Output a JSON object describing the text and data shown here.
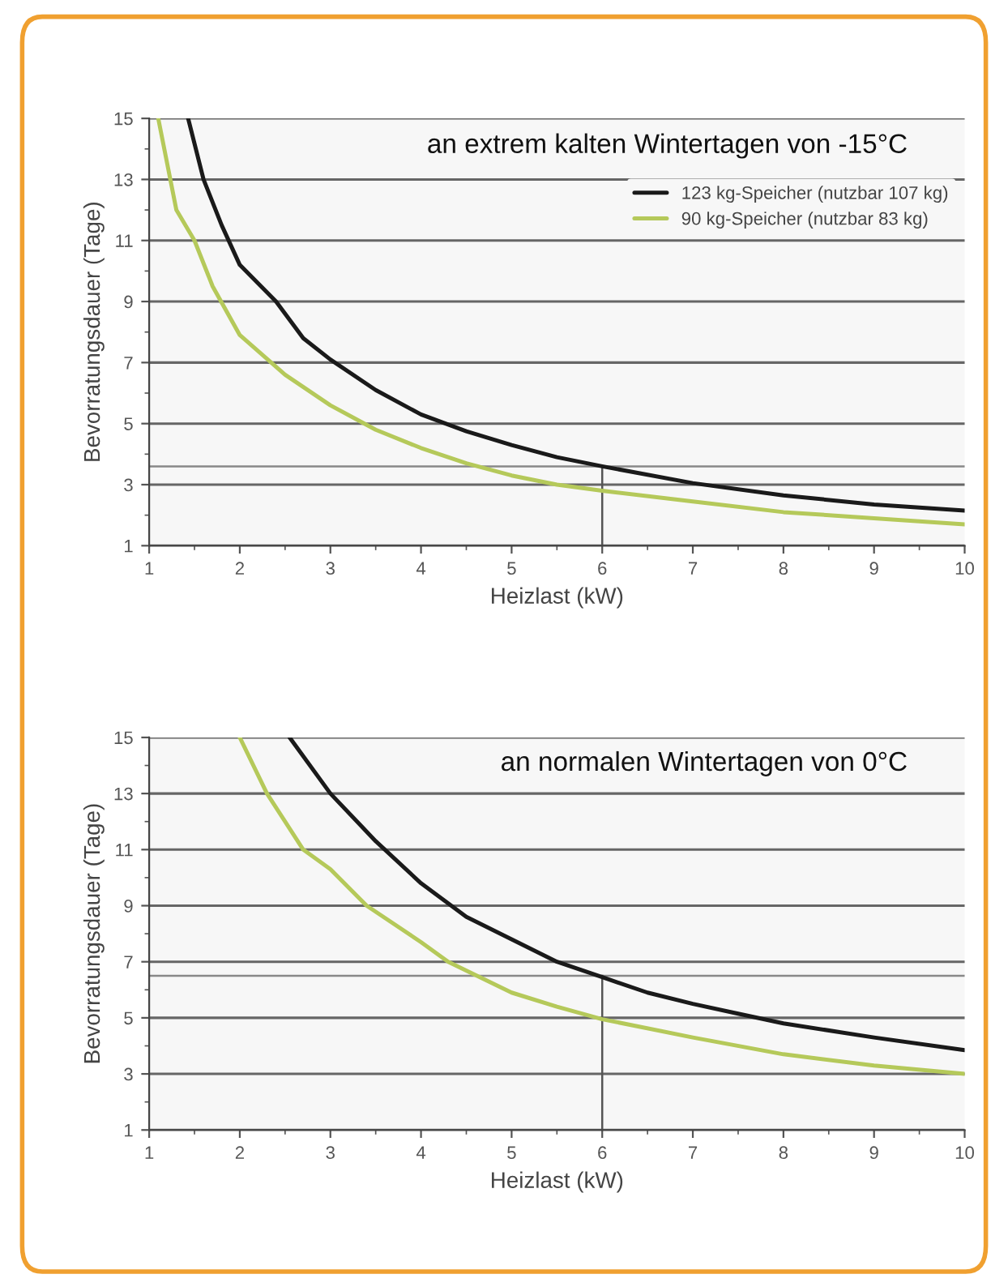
{
  "chart_data": [
    {
      "type": "line",
      "title": "an extrem kalten Wintertagen von -15°C",
      "xlabel": "Heizlast (kW)",
      "ylabel": "Bevorratungsdauer (Tage)",
      "xlim": [
        1,
        10
      ],
      "ylim": [
        1,
        15
      ],
      "xticks": [
        1,
        2,
        3,
        4,
        5,
        6,
        7,
        8,
        9,
        10
      ],
      "yticks": [
        1,
        3,
        5,
        7,
        9,
        11,
        13,
        15
      ],
      "grid": "y",
      "legend": "top right",
      "series": [
        {
          "name": "123 kg-Speicher (nutzbar 107 kg)",
          "color": "#1a1a1a",
          "x": [
            1.43,
            1.6,
            1.8,
            2,
            2.4,
            2.7,
            3,
            3.5,
            4,
            4.5,
            5,
            5.5,
            6,
            7,
            8,
            9,
            10
          ],
          "values": [
            15,
            13,
            11.5,
            10.2,
            9,
            7.8,
            7.1,
            6.1,
            5.3,
            4.75,
            4.3,
            3.9,
            3.6,
            3.05,
            2.65,
            2.35,
            2.15
          ]
        },
        {
          "name": "90 kg-Speicher (nutzbar 83 kg)",
          "color": "#b5c95a",
          "x": [
            1.1,
            1.3,
            1.5,
            1.7,
            2,
            2.5,
            3,
            3.5,
            4,
            4.5,
            5,
            5.5,
            6,
            7,
            8,
            9,
            10
          ],
          "values": [
            15,
            12,
            11,
            9.5,
            7.9,
            6.6,
            5.6,
            4.8,
            4.2,
            3.7,
            3.3,
            3.0,
            2.8,
            2.45,
            2.1,
            1.9,
            1.7
          ]
        }
      ],
      "ref_lines": [
        {
          "axis": "y",
          "value": 3.6,
          "color": "#888888"
        },
        {
          "axis": "x",
          "value": 6,
          "color": "#555555"
        }
      ]
    },
    {
      "type": "line",
      "title": "an normalen Wintertagen von 0°C",
      "xlabel": "Heizlast (kW)",
      "ylabel": "Bevorratungsdauer (Tage)",
      "xlim": [
        1,
        10
      ],
      "ylim": [
        1,
        15
      ],
      "xticks": [
        1,
        2,
        3,
        4,
        5,
        6,
        7,
        8,
        9,
        10
      ],
      "yticks": [
        1,
        3,
        5,
        7,
        9,
        11,
        13,
        15
      ],
      "grid": "y",
      "series": [
        {
          "color": "#1a1a1a",
          "x": [
            2.55,
            3,
            3.5,
            4,
            4.5,
            5,
            5.5,
            6,
            6.5,
            7,
            7.5,
            8,
            9,
            10
          ],
          "values": [
            15,
            13,
            11.3,
            9.8,
            8.6,
            7.8,
            7.0,
            6.45,
            5.9,
            5.5,
            5.15,
            4.8,
            4.3,
            3.85
          ]
        },
        {
          "color": "#b5c95a",
          "x": [
            2,
            2.3,
            2.7,
            3,
            3.4,
            4,
            4.3,
            5,
            5.5,
            6,
            7,
            8,
            9,
            10
          ],
          "values": [
            15,
            13,
            11,
            10.3,
            9,
            7.7,
            7.0,
            5.9,
            5.4,
            4.95,
            4.3,
            3.7,
            3.3,
            3.0
          ]
        }
      ],
      "ref_lines": [
        {
          "axis": "y",
          "value": 6.5,
          "color": "#888888"
        },
        {
          "axis": "x",
          "value": 6,
          "color": "#555555"
        }
      ]
    }
  ]
}
